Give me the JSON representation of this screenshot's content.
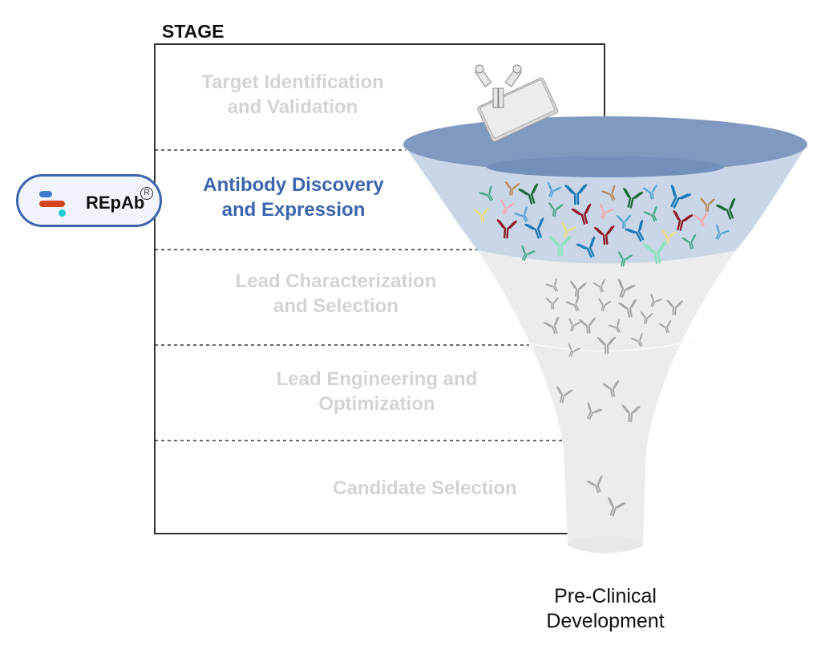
{
  "header": {
    "title": "STAGE"
  },
  "logo": {
    "text": "REpAb",
    "registered": "R"
  },
  "stages": [
    {
      "line1": "Target Identification",
      "line2": "and Validation",
      "active": false
    },
    {
      "line1": "Antibody Discovery",
      "line2": "and Expression",
      "active": true
    },
    {
      "line1": "Lead Characterization",
      "line2": "and Selection",
      "active": false
    },
    {
      "line1": "Lead Engineering and",
      "line2": "Optimization",
      "active": false
    },
    {
      "line1": "Candidate Selection",
      "line2": "",
      "active": false
    }
  ],
  "funnel": {
    "outcome_line1": "Pre-Clinical",
    "outcome_line2": "Development",
    "icons": [
      "antibody-icon",
      "well-plate-icon"
    ]
  },
  "colors": {
    "active_text": "#3b66ad",
    "inactive_text": "#d3d3d3",
    "funnel_top": "#7f99c1",
    "funnel_band": "#c9d6e7",
    "funnel_body": "#ececec",
    "antibody_palette": [
      "#4aa88a",
      "#b88a5c",
      "#1e6b3a",
      "#5aa4d0",
      "#1f7ab8",
      "#f3aab4",
      "#eedc88",
      "#8e1c2a",
      "#8fe0c0"
    ]
  }
}
